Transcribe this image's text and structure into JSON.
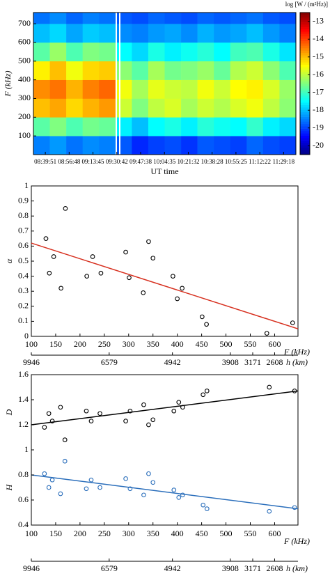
{
  "chart_data": [
    {
      "type": "heatmap",
      "ylabel": "F (kHz)",
      "xlabel": "UT time",
      "colorbar_label": "log [W / (m²Hz)]",
      "xlim": [
        30683,
        41883
      ],
      "xticks": [
        {
          "value": 31191,
          "label": "08:39:51"
        },
        {
          "value": 32208,
          "label": "08:56:48"
        },
        {
          "value": 33225,
          "label": "09:13:45"
        },
        {
          "value": 34242,
          "label": "09:30:42"
        },
        {
          "value": 35258,
          "label": "09:47:38"
        },
        {
          "value": 36275,
          "label": "10:04:35"
        },
        {
          "value": 37292,
          "label": "10:21:32"
        },
        {
          "value": 38308,
          "label": "10:38:28"
        },
        {
          "value": 39325,
          "label": "10:55:25"
        },
        {
          "value": 40342,
          "label": "11:12:22"
        },
        {
          "value": 41358,
          "label": "11:29:18"
        }
      ],
      "ylim": [
        0,
        760
      ],
      "yticks": [
        100,
        200,
        300,
        400,
        500,
        600,
        700
      ],
      "x_bins": [
        30683,
        31383,
        32083,
        32783,
        33483,
        34183,
        34883,
        35583,
        36283,
        36983,
        37683,
        38383,
        39083,
        39783,
        40483,
        41183,
        41883
      ],
      "y_bins": [
        0,
        100,
        200,
        300,
        400,
        500,
        600,
        700,
        760
      ],
      "z": [
        [
          -18.5,
          -18.3,
          -18.6,
          -18.4,
          -18.5,
          -18.8,
          -19.2,
          -19.0,
          -18.9,
          -19.1,
          -18.8,
          -18.9,
          -19.0,
          -18.7,
          -18.9,
          -19.0
        ],
        [
          -16.8,
          -16.5,
          -16.9,
          -16.6,
          -16.7,
          -17.6,
          -18.0,
          -17.5,
          -17.3,
          -17.6,
          -17.2,
          -17.4,
          -17.5,
          -17.1,
          -17.6,
          -17.8
        ],
        [
          -15.0,
          -14.8,
          -15.2,
          -14.9,
          -14.7,
          -15.9,
          -16.5,
          -16.0,
          -15.8,
          -16.2,
          -15.9,
          -16.1,
          -15.8,
          -15.6,
          -16.0,
          -16.4
        ],
        [
          -14.6,
          -14.4,
          -14.9,
          -14.5,
          -14.3,
          -15.6,
          -16.2,
          -15.7,
          -15.9,
          -16.0,
          -15.6,
          -15.9,
          -15.5,
          -15.4,
          -15.8,
          -16.3
        ],
        [
          -15.4,
          -15.0,
          -15.6,
          -15.2,
          -15.1,
          -16.4,
          -16.8,
          -16.2,
          -16.6,
          -16.5,
          -16.3,
          -16.7,
          -16.1,
          -15.9,
          -16.4,
          -16.9
        ],
        [
          -16.8,
          -16.3,
          -16.9,
          -16.5,
          -16.6,
          -17.5,
          -17.8,
          -17.3,
          -17.6,
          -17.4,
          -17.2,
          -17.5,
          -17.0,
          -16.9,
          -17.3,
          -17.7
        ],
        [
          -18.0,
          -17.8,
          -18.2,
          -17.9,
          -18.0,
          -18.4,
          -18.5,
          -18.3,
          -18.2,
          -18.4,
          -18.1,
          -18.3,
          -18.2,
          -18.0,
          -18.3,
          -18.5
        ],
        [
          -18.6,
          -18.4,
          -18.7,
          -18.5,
          -18.6,
          -18.8,
          -18.9,
          -18.7,
          -18.8,
          -18.9,
          -18.7,
          -18.8,
          -18.7,
          -18.6,
          -18.8,
          -18.9
        ]
      ],
      "clim": [
        -20.5,
        -12.5
      ],
      "cticks": [
        -13,
        -14,
        -15,
        -16,
        -17,
        -18,
        -19,
        -20
      ],
      "colormap": "jet"
    },
    {
      "type": "scatter",
      "ylabels": [
        "α"
      ],
      "xlabel": "F (kHz)",
      "x2label": "h (km)",
      "xlim": [
        100,
        648
      ],
      "xticks": [
        100,
        150,
        200,
        250,
        300,
        350,
        400,
        450,
        500,
        550,
        600
      ],
      "x2ticks": [
        {
          "value": 100,
          "label": "9946"
        },
        {
          "value": 260,
          "label": "6579"
        },
        {
          "value": 390,
          "label": "4942"
        },
        {
          "value": 509,
          "label": "3908"
        },
        {
          "value": 555,
          "label": "3171"
        },
        {
          "value": 600,
          "label": "2608"
        }
      ],
      "ylim": [
        0,
        1
      ],
      "yticks": [
        0,
        0.1,
        0.2,
        0.3,
        0.4,
        0.5,
        0.6,
        0.7,
        0.8,
        0.9,
        1
      ],
      "series": [
        {
          "mode": "markers",
          "color": "#000000",
          "x": [
            130,
            137,
            146,
            161,
            170,
            214,
            226,
            243,
            294,
            301,
            330,
            341,
            350,
            391,
            400,
            410,
            451,
            460,
            584,
            637
          ],
          "values": [
            0.65,
            0.42,
            0.53,
            0.32,
            0.85,
            0.4,
            0.53,
            0.42,
            0.56,
            0.39,
            0.29,
            0.63,
            0.52,
            0.4,
            0.25,
            0.32,
            0.13,
            0.08,
            0.02,
            0.09
          ]
        },
        {
          "mode": "line",
          "color": "#d7301f",
          "x": [
            100,
            648
          ],
          "values": [
            0.62,
            0.05
          ]
        }
      ]
    },
    {
      "type": "scatter",
      "ylabels": [
        "D",
        "H"
      ],
      "xlabel": "F (kHz)",
      "x2label": "h (km)",
      "xlim": [
        100,
        648
      ],
      "xticks": [
        100,
        150,
        200,
        250,
        300,
        350,
        400,
        450,
        500,
        550,
        600
      ],
      "x2ticks": [
        {
          "value": 100,
          "label": "9946"
        },
        {
          "value": 260,
          "label": "6579"
        },
        {
          "value": 390,
          "label": "4942"
        },
        {
          "value": 509,
          "label": "3908"
        },
        {
          "value": 555,
          "label": "3171"
        },
        {
          "value": 600,
          "label": "2608"
        }
      ],
      "ylim": [
        0.4,
        1.6
      ],
      "yticks": [
        0.4,
        0.6,
        0.8,
        1,
        1.2,
        1.4,
        1.6
      ],
      "series": [
        {
          "mode": "markers",
          "color": "#000000",
          "x": [
            127,
            136,
            143,
            160,
            169,
            213,
            223,
            241,
            294,
            303,
            331,
            341,
            350,
            393,
            403,
            411,
            453,
            461,
            589,
            641
          ],
          "values": [
            1.18,
            1.29,
            1.23,
            1.34,
            1.08,
            1.31,
            1.23,
            1.29,
            1.23,
            1.31,
            1.36,
            1.2,
            1.24,
            1.31,
            1.38,
            1.34,
            1.44,
            1.47,
            1.5,
            1.47
          ]
        },
        {
          "mode": "line",
          "color": "#000000",
          "x": [
            100,
            648
          ],
          "values": [
            1.2,
            1.47
          ]
        },
        {
          "mode": "markers",
          "color": "#2a6ebb",
          "x": [
            127,
            136,
            143,
            160,
            169,
            213,
            223,
            241,
            294,
            303,
            331,
            341,
            350,
            393,
            403,
            411,
            453,
            461,
            589,
            641
          ],
          "values": [
            0.81,
            0.7,
            0.76,
            0.65,
            0.91,
            0.69,
            0.76,
            0.7,
            0.77,
            0.69,
            0.64,
            0.81,
            0.74,
            0.68,
            0.62,
            0.64,
            0.56,
            0.53,
            0.51,
            0.54
          ]
        },
        {
          "mode": "line",
          "color": "#2a6ebb",
          "x": [
            100,
            648
          ],
          "values": [
            0.8,
            0.53
          ]
        }
      ]
    }
  ]
}
